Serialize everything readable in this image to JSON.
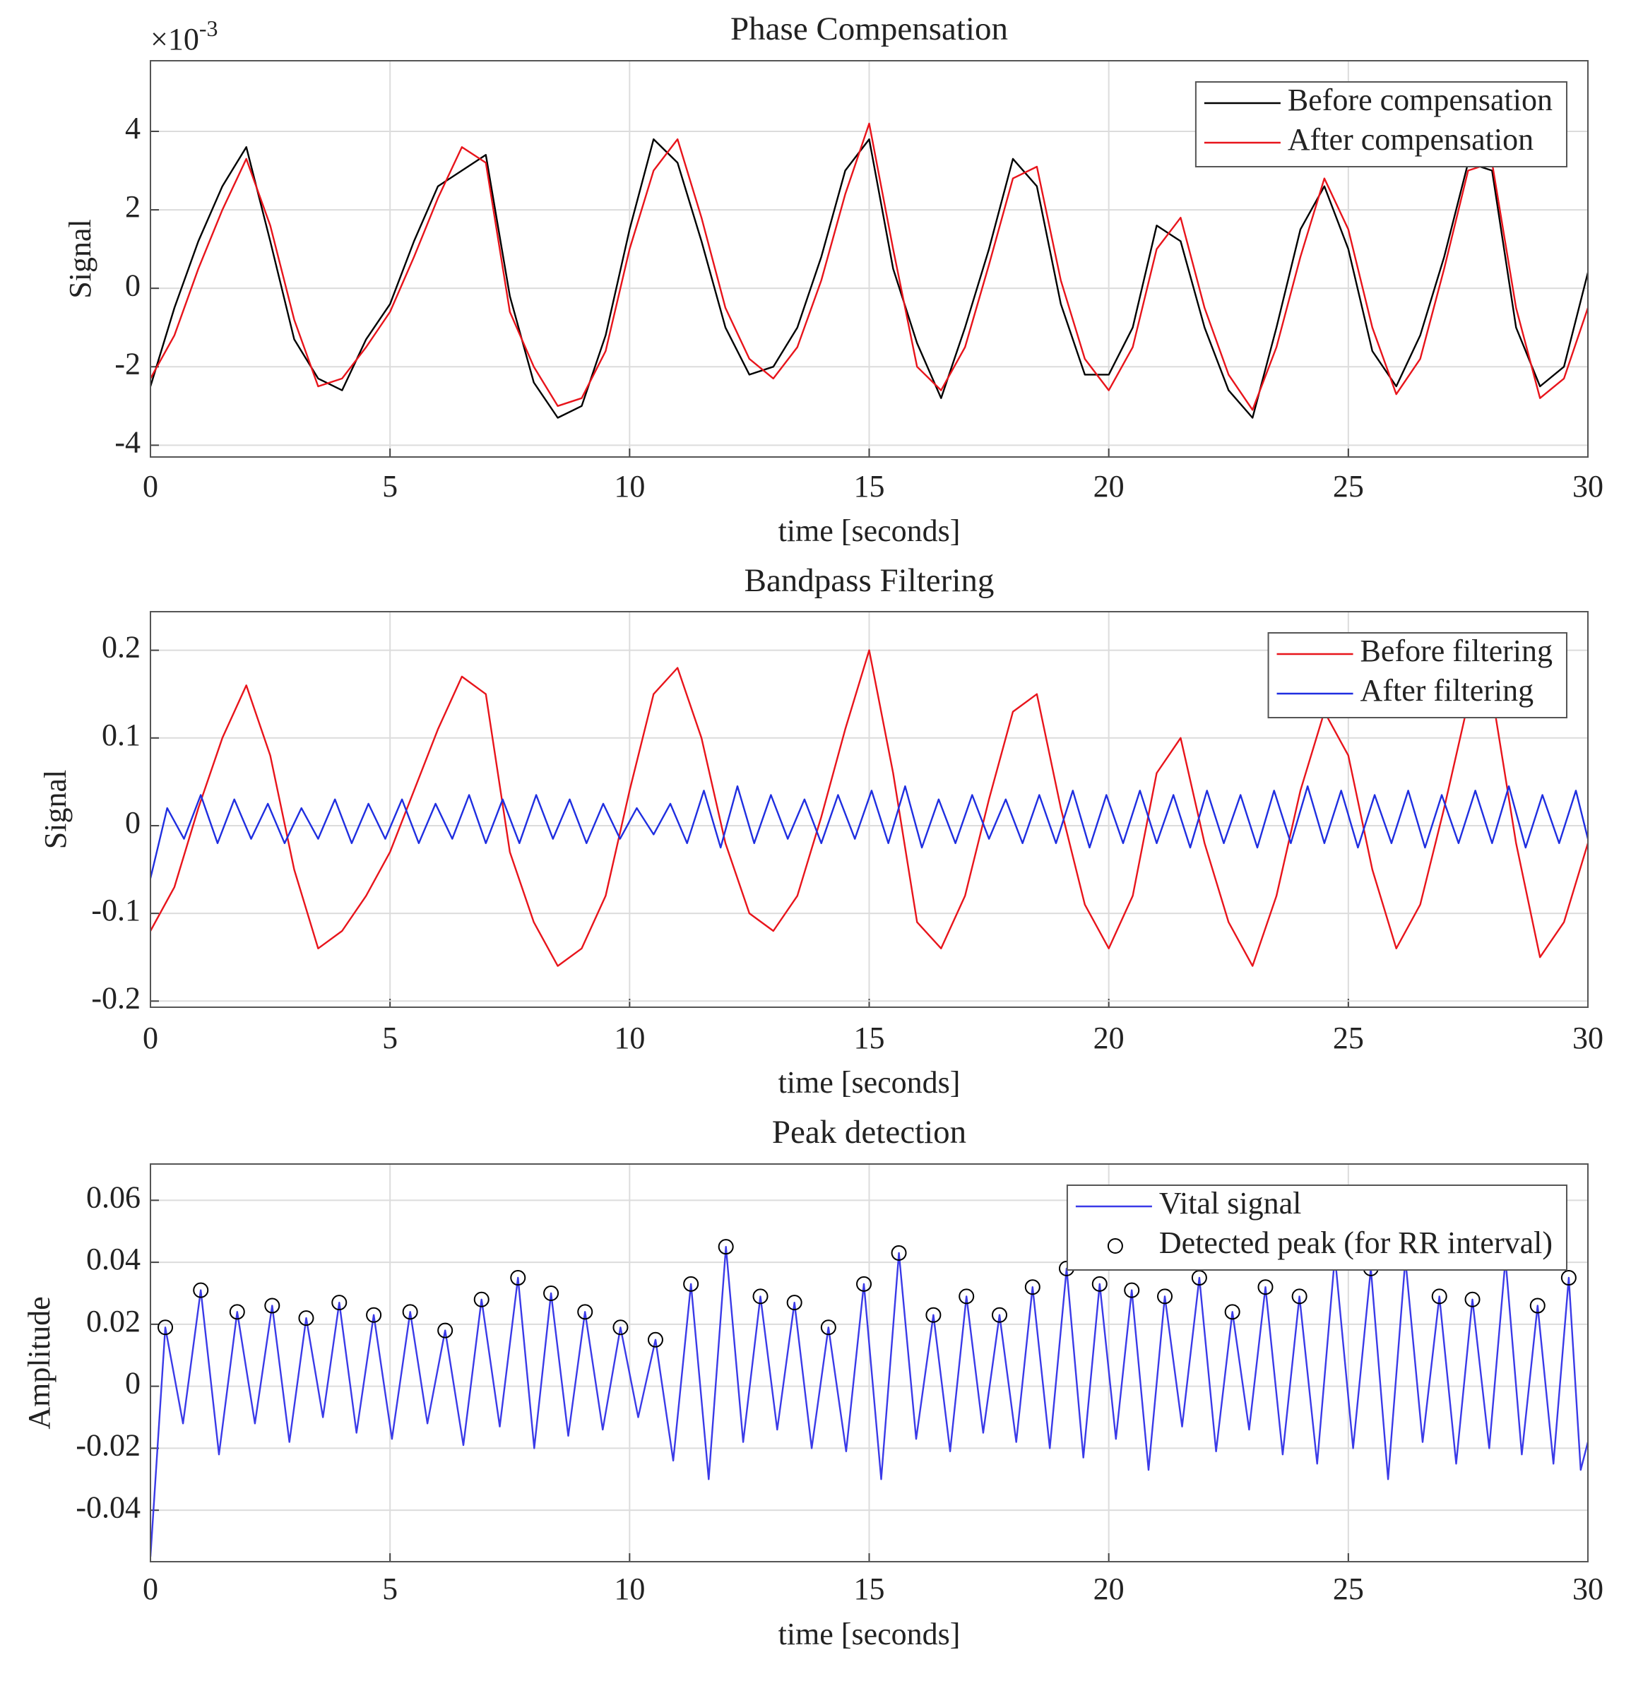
{
  "chart_data": [
    {
      "type": "line",
      "title": "Phase Compensation",
      "xlabel": "time [seconds]",
      "ylabel": "Signal",
      "y_multiplier": {
        "base": "×10",
        "exponent": "-3"
      },
      "xlim": [
        0,
        30
      ],
      "xticks": [
        0,
        5,
        10,
        15,
        20,
        25,
        30
      ],
      "ylim": [
        -4.3,
        5.8
      ],
      "yticks": [
        -4,
        -2,
        0,
        2,
        4
      ],
      "grid": true,
      "legend": "upper right",
      "x": [
        0,
        0.5,
        1,
        1.5,
        2,
        2.5,
        3,
        3.5,
        4,
        4.5,
        5,
        5.5,
        6,
        6.5,
        7,
        7.5,
        8,
        8.5,
        9,
        9.5,
        10,
        10.5,
        11,
        11.5,
        12,
        12.5,
        13,
        13.5,
        14,
        14.5,
        15,
        15.5,
        16,
        16.5,
        17,
        17.5,
        18,
        18.5,
        19,
        19.5,
        20,
        20.5,
        21,
        21.5,
        22,
        22.5,
        23,
        23.5,
        24,
        24.5,
        25,
        25.5,
        26,
        26.5,
        27,
        27.5,
        28,
        28.5,
        29,
        29.5,
        30
      ],
      "series": [
        {
          "name": "Before compensation",
          "color": "#000000",
          "values": [
            -2.5,
            -0.5,
            1.2,
            2.6,
            3.6,
            1.2,
            -1.3,
            -2.3,
            -2.6,
            -1.3,
            -0.4,
            1.2,
            2.6,
            3.0,
            3.4,
            -0.2,
            -2.4,
            -3.3,
            -3.0,
            -1.2,
            1.5,
            3.8,
            3.2,
            1.2,
            -1.0,
            -2.2,
            -2.0,
            -1.0,
            0.8,
            3.0,
            3.8,
            0.5,
            -1.4,
            -2.8,
            -1.0,
            1.0,
            3.3,
            2.6,
            -0.4,
            -2.2,
            -2.2,
            -1.0,
            1.6,
            1.2,
            -1.0,
            -2.6,
            -3.3,
            -1.0,
            1.5,
            2.6,
            1.0,
            -1.6,
            -2.5,
            -1.2,
            0.8,
            3.2,
            3.0,
            -1.0,
            -2.5,
            -2.0,
            0.4
          ]
        },
        {
          "name": "After compensation",
          "color": "#e8141b",
          "values": [
            -2.3,
            -1.2,
            0.5,
            2.0,
            3.3,
            1.6,
            -0.8,
            -2.5,
            -2.3,
            -1.5,
            -0.6,
            0.8,
            2.3,
            3.6,
            3.2,
            -0.6,
            -2.0,
            -3.0,
            -2.8,
            -1.6,
            1.0,
            3.0,
            3.8,
            1.8,
            -0.5,
            -1.8,
            -2.3,
            -1.5,
            0.2,
            2.4,
            4.2,
            1.0,
            -2.0,
            -2.6,
            -1.5,
            0.6,
            2.8,
            3.1,
            0.2,
            -1.8,
            -2.6,
            -1.5,
            1.0,
            1.8,
            -0.5,
            -2.2,
            -3.1,
            -1.5,
            0.8,
            2.8,
            1.5,
            -1.0,
            -2.7,
            -1.8,
            0.5,
            3.0,
            3.2,
            -0.5,
            -2.8,
            -2.3,
            -0.5
          ]
        }
      ]
    },
    {
      "type": "line",
      "title": "Bandpass Filtering",
      "xlabel": "time [seconds]",
      "ylabel": "Signal",
      "xlim": [
        0,
        30
      ],
      "xticks": [
        0,
        5,
        10,
        15,
        20,
        25,
        30
      ],
      "ylim": [
        -0.207,
        0.244
      ],
      "yticks": [
        -0.2,
        -0.1,
        0,
        0.1,
        0.2
      ],
      "grid": true,
      "legend": "upper right",
      "series": [
        {
          "name": "Before filtering",
          "color": "#e8141b",
          "x": [
            0,
            0.5,
            1,
            1.5,
            2,
            2.5,
            3,
            3.5,
            4,
            4.5,
            5,
            5.5,
            6,
            6.5,
            7,
            7.5,
            8,
            8.5,
            9,
            9.5,
            10,
            10.5,
            11,
            11.5,
            12,
            12.5,
            13,
            13.5,
            14,
            14.5,
            15,
            15.5,
            16,
            16.5,
            17,
            17.5,
            18,
            18.5,
            19,
            19.5,
            20,
            20.5,
            21,
            21.5,
            22,
            22.5,
            23,
            23.5,
            24,
            24.5,
            25,
            25.5,
            26,
            26.5,
            27,
            27.5,
            28,
            28.5,
            29,
            29.5,
            30
          ],
          "values": [
            -0.12,
            -0.07,
            0.02,
            0.1,
            0.16,
            0.08,
            -0.05,
            -0.14,
            -0.12,
            -0.08,
            -0.03,
            0.04,
            0.11,
            0.17,
            0.15,
            -0.03,
            -0.11,
            -0.16,
            -0.14,
            -0.08,
            0.04,
            0.15,
            0.18,
            0.1,
            -0.02,
            -0.1,
            -0.12,
            -0.08,
            0.01,
            0.11,
            0.2,
            0.06,
            -0.11,
            -0.14,
            -0.08,
            0.03,
            0.13,
            0.15,
            0.02,
            -0.09,
            -0.14,
            -0.08,
            0.06,
            0.1,
            -0.02,
            -0.11,
            -0.16,
            -0.08,
            0.04,
            0.13,
            0.08,
            -0.05,
            -0.14,
            -0.09,
            0.02,
            0.14,
            0.15,
            -0.02,
            -0.15,
            -0.11,
            -0.02
          ]
        },
        {
          "name": "After filtering",
          "color": "#1f2ee0",
          "x": [
            0,
            0.35,
            0.7,
            1.05,
            1.4,
            1.75,
            2.1,
            2.45,
            2.8,
            3.15,
            3.5,
            3.85,
            4.2,
            4.55,
            4.9,
            5.25,
            5.6,
            5.95,
            6.3,
            6.65,
            7,
            7.35,
            7.7,
            8.05,
            8.4,
            8.75,
            9.1,
            9.45,
            9.8,
            10.15,
            10.5,
            10.85,
            11.2,
            11.55,
            11.9,
            12.25,
            12.6,
            12.95,
            13.3,
            13.65,
            14,
            14.35,
            14.7,
            15.05,
            15.4,
            15.75,
            16.1,
            16.45,
            16.8,
            17.15,
            17.5,
            17.85,
            18.2,
            18.55,
            18.9,
            19.25,
            19.6,
            19.95,
            20.3,
            20.65,
            21,
            21.35,
            21.7,
            22.05,
            22.4,
            22.75,
            23.1,
            23.45,
            23.8,
            24.15,
            24.5,
            24.85,
            25.2,
            25.55,
            25.9,
            26.25,
            26.6,
            26.95,
            27.3,
            27.65,
            28,
            28.35,
            28.7,
            29.05,
            29.4,
            29.75,
            30
          ],
          "values": [
            -0.06,
            0.02,
            -0.015,
            0.035,
            -0.02,
            0.03,
            -0.015,
            0.025,
            -0.02,
            0.02,
            -0.015,
            0.03,
            -0.02,
            0.025,
            -0.015,
            0.03,
            -0.02,
            0.025,
            -0.015,
            0.035,
            -0.02,
            0.03,
            -0.02,
            0.035,
            -0.015,
            0.03,
            -0.02,
            0.025,
            -0.015,
            0.02,
            -0.01,
            0.025,
            -0.02,
            0.04,
            -0.025,
            0.045,
            -0.02,
            0.035,
            -0.015,
            0.03,
            -0.02,
            0.035,
            -0.015,
            0.04,
            -0.02,
            0.045,
            -0.025,
            0.03,
            -0.02,
            0.035,
            -0.015,
            0.03,
            -0.02,
            0.035,
            -0.02,
            0.04,
            -0.025,
            0.035,
            -0.02,
            0.04,
            -0.02,
            0.035,
            -0.025,
            0.04,
            -0.02,
            0.035,
            -0.025,
            0.04,
            -0.02,
            0.045,
            -0.02,
            0.04,
            -0.025,
            0.035,
            -0.02,
            0.04,
            -0.025,
            0.035,
            -0.02,
            0.04,
            -0.02,
            0.045,
            -0.025,
            0.035,
            -0.02,
            0.04,
            -0.015
          ]
        }
      ]
    },
    {
      "type": "line",
      "title": "Peak detection",
      "xlabel": "time [seconds]",
      "ylabel": "Amplitude",
      "xlim": [
        0,
        30
      ],
      "xticks": [
        0,
        5,
        10,
        15,
        20,
        25,
        30
      ],
      "ylim": [
        -0.0566,
        0.0717
      ],
      "yticks": [
        -0.04,
        -0.02,
        0,
        0.02,
        0.04,
        0.06
      ],
      "grid": true,
      "legend": "upper right",
      "series": [
        {
          "name": "Vital signal",
          "color": "#3a3ae8",
          "x": [
            0,
            0.31,
            0.68,
            1.05,
            1.43,
            1.81,
            2.18,
            2.54,
            2.9,
            3.25,
            3.6,
            3.94,
            4.3,
            4.66,
            5.04,
            5.42,
            5.78,
            6.15,
            6.53,
            6.91,
            7.29,
            7.67,
            8.01,
            8.36,
            8.72,
            9.07,
            9.44,
            9.81,
            10.18,
            10.54,
            10.91,
            11.28,
            11.65,
            12.01,
            12.37,
            12.73,
            13.08,
            13.44,
            13.8,
            14.15,
            14.52,
            14.89,
            15.25,
            15.62,
            15.98,
            16.34,
            16.69,
            17.03,
            17.38,
            17.72,
            18.07,
            18.41,
            18.77,
            19.12,
            19.47,
            19.81,
            20.15,
            20.48,
            20.83,
            21.17,
            21.53,
            21.89,
            22.24,
            22.58,
            22.93,
            23.27,
            23.63,
            23.98,
            24.35,
            24.72,
            25.1,
            25.47,
            25.83,
            26.19,
            26.55,
            26.9,
            27.25,
            27.59,
            27.94,
            28.28,
            28.62,
            28.95,
            29.28,
            29.6,
            29.85,
            30
          ],
          "values": [
            -0.055,
            0.019,
            -0.012,
            0.031,
            -0.022,
            0.024,
            -0.012,
            0.026,
            -0.018,
            0.022,
            -0.01,
            0.027,
            -0.015,
            0.023,
            -0.017,
            0.024,
            -0.012,
            0.018,
            -0.019,
            0.028,
            -0.013,
            0.035,
            -0.02,
            0.03,
            -0.016,
            0.024,
            -0.014,
            0.019,
            -0.01,
            0.015,
            -0.024,
            0.033,
            -0.03,
            0.045,
            -0.018,
            0.029,
            -0.014,
            0.027,
            -0.02,
            0.019,
            -0.021,
            0.033,
            -0.03,
            0.043,
            -0.017,
            0.023,
            -0.021,
            0.029,
            -0.015,
            0.023,
            -0.018,
            0.032,
            -0.02,
            0.038,
            -0.023,
            0.033,
            -0.017,
            0.031,
            -0.027,
            0.029,
            -0.013,
            0.035,
            -0.021,
            0.024,
            -0.014,
            0.032,
            -0.022,
            0.029,
            -0.025,
            0.042,
            -0.02,
            0.038,
            -0.03,
            0.041,
            -0.018,
            0.029,
            -0.025,
            0.028,
            -0.02,
            0.041,
            -0.022,
            0.026,
            -0.025,
            0.035,
            -0.027,
            -0.018
          ]
        },
        {
          "name": "Detected peak (for RR interval)",
          "color": "#000000",
          "marker": "o",
          "x": [
            0.31,
            1.05,
            1.81,
            2.54,
            3.25,
            3.94,
            4.66,
            5.42,
            6.15,
            6.91,
            7.67,
            8.36,
            9.07,
            9.81,
            10.54,
            11.28,
            12.01,
            12.73,
            13.44,
            14.15,
            14.89,
            15.62,
            16.34,
            17.03,
            17.72,
            18.41,
            19.12,
            19.81,
            20.48,
            21.17,
            21.89,
            22.58,
            23.27,
            23.98,
            24.72,
            25.47,
            26.19,
            26.9,
            27.59,
            28.28,
            28.95,
            29.6
          ],
          "values": [
            0.019,
            0.031,
            0.024,
            0.026,
            0.022,
            0.027,
            0.023,
            0.024,
            0.018,
            0.028,
            0.035,
            0.03,
            0.024,
            0.019,
            0.015,
            0.033,
            0.045,
            0.029,
            0.027,
            0.019,
            0.033,
            0.043,
            0.023,
            0.029,
            0.023,
            0.032,
            0.038,
            0.033,
            0.031,
            0.029,
            0.035,
            0.024,
            0.032,
            0.029,
            0.042,
            0.038,
            0.041,
            0.029,
            0.028,
            0.041,
            0.026,
            0.035
          ]
        }
      ]
    }
  ]
}
